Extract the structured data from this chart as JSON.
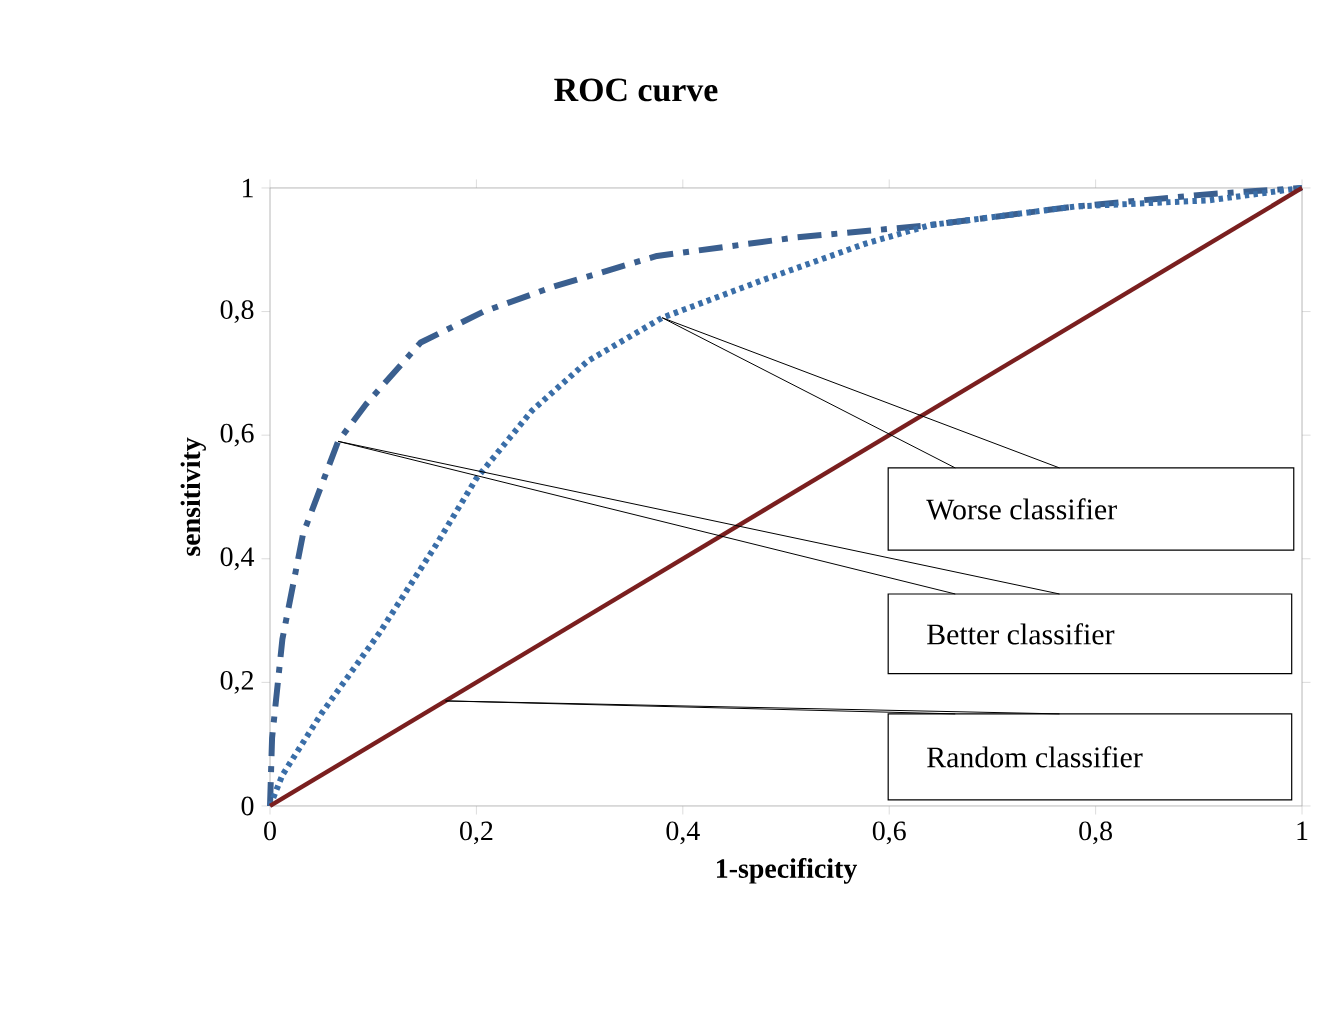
{
  "chart_data": {
    "type": "line",
    "title": "ROC curve",
    "xlabel": "1-specificity",
    "ylabel": "sensitivity",
    "xlim": [
      0,
      1
    ],
    "ylim": [
      0,
      1
    ],
    "xticks": [
      0,
      {
        "value": 0.2,
        "label": "0,2"
      },
      {
        "value": 0.4,
        "label": "0,4"
      },
      {
        "value": 0.6,
        "label": "0,6"
      },
      {
        "value": 0.8,
        "label": "0,8"
      },
      1
    ],
    "yticks": [
      0,
      {
        "value": 0.2,
        "label": "0,2"
      },
      {
        "value": 0.4,
        "label": "0,4"
      },
      {
        "value": 0.6,
        "label": "0,6"
      },
      {
        "value": 0.8,
        "label": "0,8"
      },
      1
    ],
    "marker": "none",
    "series": [
      {
        "color": "#3a5f8f",
        "line_style": "dashdot",
        "x": [
          0,
          0.002,
          0.012,
          0.032,
          0.066,
          0.093,
          0.146,
          0.207,
          0.274,
          0.375,
          0.51,
          0.64,
          0.78,
          0.91,
          1
        ],
        "values": [
          0,
          0.11,
          0.27,
          0.44,
          0.59,
          0.65,
          0.75,
          0.8,
          0.84,
          0.89,
          0.92,
          0.94,
          0.97,
          0.99,
          1
        ]
      },
      {
        "color": "#3a6ea8",
        "line_style": "dotted",
        "x": [
          0,
          0.012,
          0.05,
          0.106,
          0.16,
          0.2,
          0.254,
          0.308,
          0.38,
          0.476,
          0.577,
          0.64,
          0.78,
          0.91,
          1
        ],
        "values": [
          0,
          0.05,
          0.15,
          0.28,
          0.42,
          0.53,
          0.64,
          0.72,
          0.79,
          0.85,
          0.91,
          0.94,
          0.97,
          0.98,
          1
        ]
      },
      {
        "color": "#7a1f1f",
        "line_style": "solid",
        "x": [
          0,
          1
        ],
        "values": [
          0,
          1
        ]
      }
    ],
    "annotations": [
      {
        "text": "Worse classifier",
        "x": 0.38,
        "y": 0.79
      },
      {
        "text": "Better classifier",
        "x": 0.066,
        "y": 0.59
      },
      {
        "text": "Random classifier",
        "x": 0.17,
        "y": 0.17
      }
    ]
  }
}
